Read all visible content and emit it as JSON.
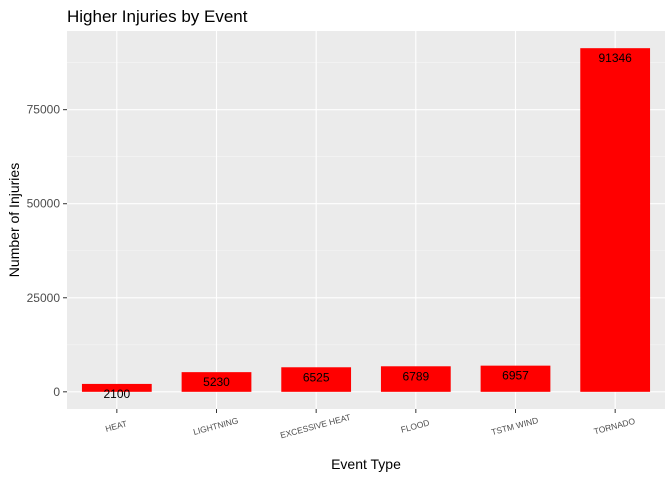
{
  "chart_data": {
    "type": "bar",
    "title": "Higher Injuries by Event",
    "xlabel": "Event Type",
    "ylabel": "Number of Injuries",
    "categories": [
      "HEAT",
      "LIGHTNING",
      "EXCESSIVE HEAT",
      "FLOOD",
      "TSTM WIND",
      "TORNADO"
    ],
    "values": [
      2100,
      5230,
      6525,
      6789,
      6957,
      91346
    ],
    "data_labels": [
      "2100",
      "5230",
      "6525",
      "6789",
      "6957",
      "91346"
    ],
    "yticks": [
      0,
      25000,
      50000,
      75000
    ],
    "ytick_labels": [
      "0",
      "25000",
      "50000",
      "75000"
    ],
    "ylim": [
      -4567,
      95913
    ],
    "grid": true,
    "legend": "none",
    "colors": {
      "bar": "#ff0000",
      "panel": "#ebebeb",
      "grid_major": "#ffffff",
      "grid_minor": "#f5f5f5"
    }
  }
}
